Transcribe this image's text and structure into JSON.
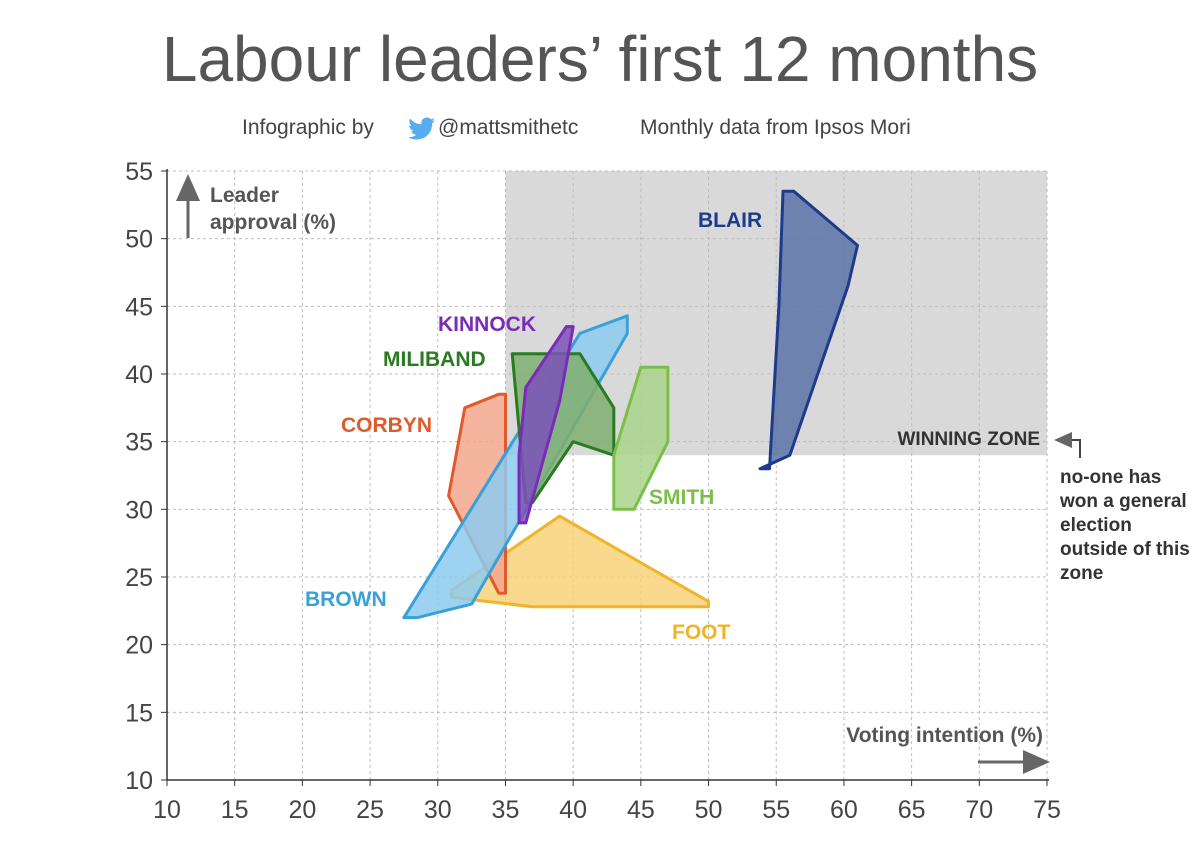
{
  "title": "Labour leaders’ first 12 months",
  "subtitle": {
    "prefix": "Infographic by",
    "handle": "@mattsmithetc",
    "source": "Monthly data from Ipsos Mori",
    "twitter_icon": "twitter-bird-icon",
    "twitter_color": "#55acee"
  },
  "chart_data": {
    "type": "area",
    "xlabel": "Voting intention (%)",
    "ylabel": "Leader approval (%)",
    "xlim": [
      10,
      75
    ],
    "ylim": [
      10,
      55
    ],
    "x_ticks": [
      "10",
      "15",
      "20",
      "25",
      "30",
      "35",
      "40",
      "45",
      "50",
      "55",
      "60",
      "65",
      "70",
      "75"
    ],
    "y_ticks": [
      "10",
      "15",
      "20",
      "25",
      "30",
      "35",
      "40",
      "45",
      "50",
      "55"
    ],
    "grid": true,
    "winning_zone": {
      "label": "WINNING ZONE",
      "x_min": 35,
      "x_max": 75,
      "y_min": 34,
      "y_max": 55,
      "fill": "#d9d9d9",
      "note": "no-one has won a general election outside of this zone"
    },
    "series": [
      {
        "name": "FOOT",
        "color": "#f0b428",
        "fill": "#f8d27a",
        "points": [
          [
            31,
            24
          ],
          [
            39,
            29.5
          ],
          [
            50,
            23.2
          ],
          [
            50,
            22.8
          ],
          [
            37,
            22.8
          ],
          [
            31,
            23.5
          ]
        ]
      },
      {
        "name": "CORBYN",
        "color": "#e05a2b",
        "fill": "#f2a78d",
        "points": [
          [
            32,
            37.5
          ],
          [
            34.5,
            38.5
          ],
          [
            35,
            38.5
          ],
          [
            35,
            23.8
          ],
          [
            34.5,
            23.8
          ],
          [
            30.8,
            31
          ]
        ]
      },
      {
        "name": "BROWN",
        "color": "#3aa0d8",
        "fill": "#8dcaee",
        "points": [
          [
            27.5,
            22
          ],
          [
            40.5,
            43
          ],
          [
            44,
            44.3
          ],
          [
            44,
            43
          ],
          [
            32.5,
            23
          ],
          [
            28.5,
            22
          ]
        ]
      },
      {
        "name": "MILIBAND",
        "color": "#2a7a22",
        "fill": "#7fae6e",
        "points": [
          [
            35.5,
            41.5
          ],
          [
            40.5,
            41.5
          ],
          [
            43,
            37.5
          ],
          [
            43,
            34
          ],
          [
            40,
            35
          ],
          [
            37,
            30.5
          ],
          [
            36.5,
            30.5
          ]
        ]
      },
      {
        "name": "KINNOCK",
        "color": "#7a2bb8",
        "fill": "#7a52b8",
        "points": [
          [
            36.5,
            39
          ],
          [
            39.5,
            43.5
          ],
          [
            40,
            43.5
          ],
          [
            39,
            38
          ],
          [
            36.5,
            29
          ],
          [
            36,
            29
          ],
          [
            36,
            34
          ]
        ]
      },
      {
        "name": "SMITH",
        "color": "#7bbf4a",
        "fill": "#a9d38a",
        "points": [
          [
            43,
            30
          ],
          [
            44.5,
            30
          ],
          [
            47,
            35
          ],
          [
            47,
            40.5
          ],
          [
            45,
            40.5
          ],
          [
            43,
            34
          ]
        ]
      },
      {
        "name": "BLAIR",
        "color": "#1e3a8a",
        "fill": "#5a72a8",
        "points": [
          [
            55.5,
            53.5
          ],
          [
            56.3,
            53.5
          ],
          [
            59,
            51.2
          ],
          [
            61,
            49.5
          ],
          [
            60.3,
            46.5
          ],
          [
            56,
            34
          ],
          [
            53.8,
            33
          ],
          [
            54.5,
            33
          ],
          [
            55.2,
            45
          ]
        ]
      }
    ],
    "labels": {
      "BLAIR": "BLAIR",
      "KINNOCK": "KINNOCK",
      "MILIBAND": "MILIBAND",
      "CORBYN": "CORBYN",
      "SMITH": "SMITH",
      "BROWN": "BROWN",
      "FOOT": "FOOT"
    }
  }
}
